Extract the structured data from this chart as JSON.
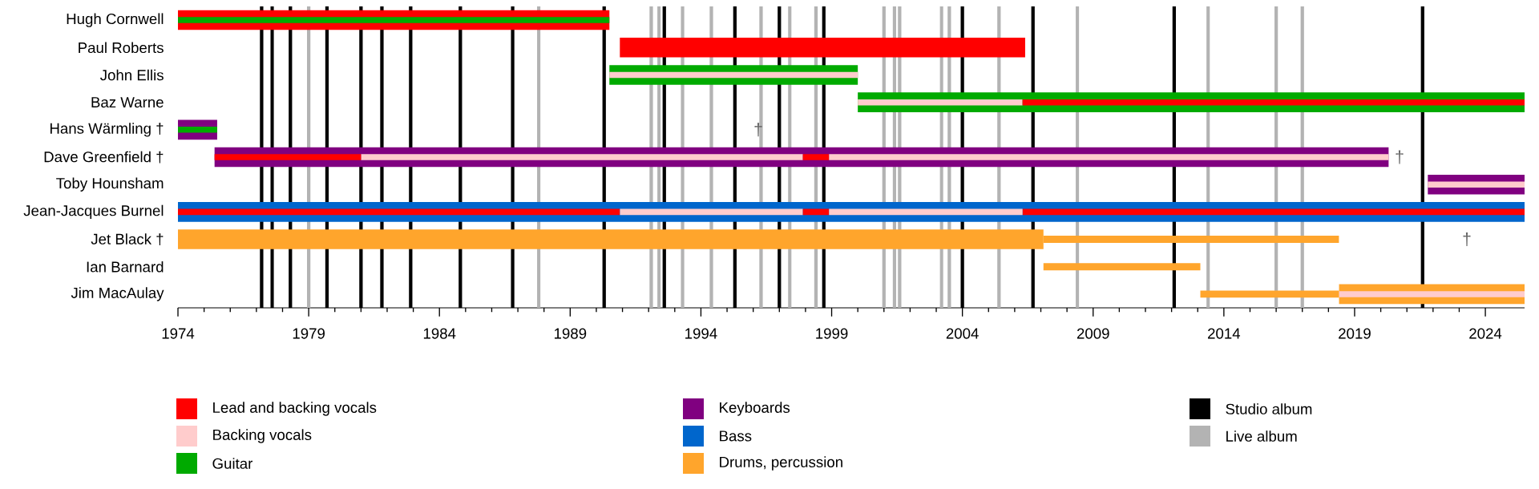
{
  "chart_data": {
    "type": "bar",
    "orientation": "horizontal",
    "legend": "bottom",
    "categories": [
      "Hugh Cornwell",
      "Paul Roberts",
      "John Ellis",
      "Baz Warne",
      "Hans Wärmling †",
      "Dave Greenfield †",
      "Toby Hounsham",
      "Jean-Jacques Burnel",
      "Jet Black †",
      "Ian Barnard",
      "Jim MacAulay"
    ],
    "xlim": [
      1974,
      2025.5
    ],
    "xticks": [
      1974,
      1979,
      1984,
      1989,
      1994,
      1999,
      2004,
      2009,
      2014,
      2019,
      2024
    ],
    "series": [
      {
        "name": "Lead and backing vocals",
        "color": "#ff0000",
        "values": [
          16.5,
          15.5,
          null,
          null,
          null,
          null,
          null,
          null,
          null,
          null,
          null
        ],
        "base": [
          1974,
          1990.9,
          null,
          null,
          null,
          null,
          null,
          null,
          null,
          null,
          null
        ]
      },
      {
        "name": "Backing vocals",
        "color": "#ffcccc",
        "values": [
          null,
          null,
          9.5,
          6.3,
          null,
          16.9,
          3.7,
          7.0,
          null,
          null,
          7.1
        ],
        "base": [
          null,
          null,
          1990.5,
          2000.0,
          null,
          1981.0,
          2021.8,
          1990.9,
          null,
          null,
          2018.4
        ]
      },
      {
        "name": "Guitar",
        "color": "#00aa00",
        "values": [
          null,
          null,
          9.5,
          25.5,
          null,
          null,
          null,
          null,
          null,
          null,
          null
        ],
        "base": [
          null,
          null,
          1990.5,
          2000.0,
          null,
          null,
          null,
          null,
          null,
          null,
          null
        ]
      },
      {
        "name": "Keyboards",
        "color": "#800080",
        "values": [
          null,
          null,
          null,
          null,
          1.5,
          44.9,
          3.7,
          null,
          null,
          null,
          null
        ],
        "base": [
          null,
          null,
          null,
          null,
          1974,
          1975.4,
          2021.8,
          null,
          null,
          null,
          null
        ]
      },
      {
        "name": "Bass",
        "color": "#0066cc",
        "values": [
          null,
          null,
          null,
          null,
          null,
          null,
          null,
          51.5,
          null,
          null,
          null
        ],
        "base": [
          null,
          null,
          null,
          null,
          null,
          null,
          null,
          1974,
          null,
          null,
          null
        ]
      },
      {
        "name": "Drums, percussion",
        "color": "#ffa52c",
        "values": [
          null,
          null,
          null,
          null,
          null,
          null,
          null,
          null,
          33.1,
          null,
          7.1
        ],
        "base": [
          null,
          null,
          null,
          null,
          null,
          null,
          null,
          null,
          1974,
          null,
          2018.4
        ]
      },
      {
        "color": "#ff0000",
        "values": [
          null,
          null,
          null,
          19.2,
          null,
          5.6,
          null,
          16.9,
          null,
          null,
          null
        ],
        "base": [
          null,
          null,
          null,
          2006.3,
          null,
          1975.4,
          null,
          1974,
          null,
          null,
          null
        ]
      },
      {
        "color": "#ff0000",
        "values": [
          null,
          null,
          null,
          null,
          null,
          1.0,
          null,
          1.0,
          null,
          null,
          null
        ],
        "base": [
          null,
          null,
          null,
          null,
          null,
          1997.9,
          null,
          1997.9,
          null,
          null,
          null
        ]
      },
      {
        "color": "#ff0000",
        "values": [
          null,
          null,
          null,
          null,
          null,
          null,
          null,
          19.2,
          null,
          null,
          null
        ],
        "base": [
          null,
          null,
          null,
          null,
          null,
          null,
          null,
          2006.3,
          null,
          null,
          null
        ]
      },
      {
        "color": "#ffcccc",
        "values": [
          null,
          null,
          null,
          null,
          null,
          21.4,
          null,
          7.4,
          null,
          null,
          null
        ],
        "base": [
          null,
          null,
          null,
          null,
          null,
          1998.9,
          null,
          1998.9,
          null,
          null,
          null
        ]
      },
      {
        "color": "#00aa00",
        "values": [
          16.5,
          null,
          null,
          null,
          1.5,
          null,
          null,
          null,
          null,
          null,
          null
        ],
        "base": [
          1974,
          null,
          null,
          null,
          1974,
          null,
          null,
          null,
          null,
          null,
          null
        ]
      },
      {
        "color": "#ffa52c",
        "values": [
          null,
          null,
          null,
          null,
          null,
          null,
          null,
          null,
          11.3,
          6.0,
          5.3
        ],
        "base": [
          null,
          null,
          null,
          null,
          null,
          null,
          null,
          null,
          2007.1,
          2007.1,
          2013.1
        ]
      }
    ],
    "ref_lines": [
      {
        "axis": "x",
        "value": 1977.2,
        "label": "Studio album",
        "color": "#000000"
      },
      {
        "axis": "x",
        "value": 1977.6,
        "color": "#000000"
      },
      {
        "axis": "x",
        "value": 1978.3,
        "color": "#000000"
      },
      {
        "axis": "x",
        "value": 1979.7,
        "color": "#000000"
      },
      {
        "axis": "x",
        "value": 1981.0,
        "color": "#000000"
      },
      {
        "axis": "x",
        "value": 1981.8,
        "color": "#000000"
      },
      {
        "axis": "x",
        "value": 1982.9,
        "color": "#000000"
      },
      {
        "axis": "x",
        "value": 1984.8,
        "color": "#000000"
      },
      {
        "axis": "x",
        "value": 1986.8,
        "color": "#000000"
      },
      {
        "axis": "x",
        "value": 1990.3,
        "color": "#000000"
      },
      {
        "axis": "x",
        "value": 1992.6,
        "color": "#000000"
      },
      {
        "axis": "x",
        "value": 1995.3,
        "color": "#000000"
      },
      {
        "axis": "x",
        "value": 1997.0,
        "color": "#000000"
      },
      {
        "axis": "x",
        "value": 1998.7,
        "color": "#000000"
      },
      {
        "axis": "x",
        "value": 2004.0,
        "color": "#000000"
      },
      {
        "axis": "x",
        "value": 2006.7,
        "color": "#000000"
      },
      {
        "axis": "x",
        "value": 2012.1,
        "color": "#000000"
      },
      {
        "axis": "x",
        "value": 2021.6,
        "color": "#000000"
      },
      {
        "axis": "x",
        "value": 1979.0,
        "label": "Live album",
        "color": "#b3b3b3"
      },
      {
        "axis": "x",
        "value": 1987.8,
        "color": "#b3b3b3"
      },
      {
        "axis": "x",
        "value": 1992.1,
        "color": "#b3b3b3"
      },
      {
        "axis": "x",
        "value": 1992.4,
        "color": "#b3b3b3"
      },
      {
        "axis": "x",
        "value": 1993.3,
        "color": "#b3b3b3"
      },
      {
        "axis": "x",
        "value": 1994.4,
        "color": "#b3b3b3"
      },
      {
        "axis": "x",
        "value": 1996.3,
        "color": "#b3b3b3"
      },
      {
        "axis": "x",
        "value": 1997.4,
        "color": "#b3b3b3"
      },
      {
        "axis": "x",
        "value": 1998.4,
        "color": "#b3b3b3"
      },
      {
        "axis": "x",
        "value": 2001.0,
        "color": "#b3b3b3"
      },
      {
        "axis": "x",
        "value": 2001.4,
        "color": "#b3b3b3"
      },
      {
        "axis": "x",
        "value": 2001.6,
        "color": "#b3b3b3"
      },
      {
        "axis": "x",
        "value": 2003.2,
        "color": "#b3b3b3"
      },
      {
        "axis": "x",
        "value": 2003.5,
        "color": "#b3b3b3"
      },
      {
        "axis": "x",
        "value": 2005.4,
        "color": "#b3b3b3"
      },
      {
        "axis": "x",
        "value": 2008.4,
        "color": "#b3b3b3"
      },
      {
        "axis": "x",
        "value": 2013.4,
        "color": "#b3b3b3"
      },
      {
        "axis": "x",
        "value": 2016.0,
        "color": "#b3b3b3"
      },
      {
        "axis": "x",
        "value": 2017.0,
        "color": "#b3b3b3"
      }
    ],
    "annotations": [
      "†",
      "†",
      "†"
    ]
  }
}
